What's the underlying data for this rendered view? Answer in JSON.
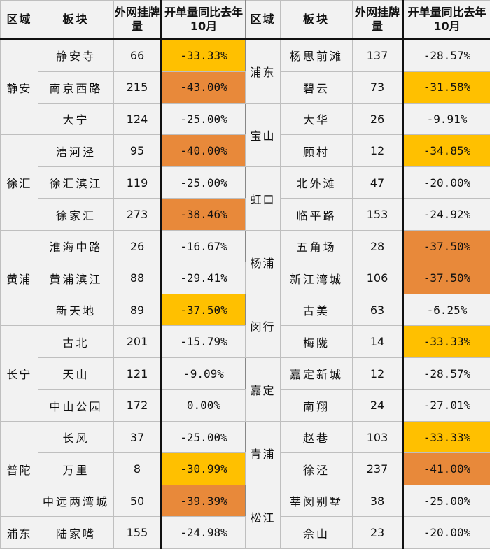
{
  "headers": {
    "region": "区域",
    "block": "板块",
    "listings": "外网挂牌量",
    "yoy": "开单量同比去年10月"
  },
  "colors": {
    "yellow": "#FFC000",
    "orange": "#E8893A"
  },
  "left": [
    {
      "region": "静安",
      "span": 3,
      "rows": [
        [
          "静安寺",
          "66",
          "-33.33%",
          "yellow"
        ],
        [
          "南京西路",
          "215",
          "-43.00%",
          "orange"
        ],
        [
          "大宁",
          "124",
          "-25.00%",
          ""
        ]
      ]
    },
    {
      "region": "徐汇",
      "span": 3,
      "rows": [
        [
          "漕河泾",
          "95",
          "-40.00%",
          "orange"
        ],
        [
          "徐汇滨江",
          "119",
          "-25.00%",
          ""
        ],
        [
          "徐家汇",
          "273",
          "-38.46%",
          "orange"
        ]
      ]
    },
    {
      "region": "黄浦",
      "span": 3,
      "rows": [
        [
          "淮海中路",
          "26",
          "-16.67%",
          ""
        ],
        [
          "黄浦滨江",
          "88",
          "-29.41%",
          ""
        ],
        [
          "新天地",
          "89",
          "-37.50%",
          "yellow"
        ]
      ]
    },
    {
      "region": "长宁",
      "span": 3,
      "rows": [
        [
          "古北",
          "201",
          "-15.79%",
          ""
        ],
        [
          "天山",
          "121",
          "-9.09%",
          ""
        ],
        [
          "中山公园",
          "172",
          "0.00%",
          ""
        ]
      ]
    },
    {
      "region": "普陀",
      "span": 3,
      "rows": [
        [
          "长风",
          "37",
          "-25.00%",
          ""
        ],
        [
          "万里",
          "8",
          "-30.99%",
          "yellow"
        ],
        [
          "中远两湾城",
          "50",
          "-39.39%",
          "orange"
        ]
      ]
    },
    {
      "region": "浦东",
      "span": 1,
      "rows": [
        [
          "陆家嘴",
          "155",
          "-24.98%",
          ""
        ]
      ]
    }
  ],
  "right": [
    {
      "region": "浦东",
      "span": 2,
      "rows": [
        [
          "杨思前滩",
          "137",
          "-28.57%",
          ""
        ],
        [
          "碧云",
          "73",
          "-31.58%",
          "yellow"
        ]
      ]
    },
    {
      "region": "宝山",
      "span": 2,
      "rows": [
        [
          "大华",
          "26",
          "-9.91%",
          ""
        ],
        [
          "顾村",
          "12",
          "-34.85%",
          "yellow"
        ]
      ]
    },
    {
      "region": "虹口",
      "span": 2,
      "rows": [
        [
          "北外滩",
          "47",
          "-20.00%",
          ""
        ],
        [
          "临平路",
          "153",
          "-24.92%",
          ""
        ]
      ]
    },
    {
      "region": "杨浦",
      "span": 2,
      "rows": [
        [
          "五角场",
          "28",
          "-37.50%",
          "orange"
        ],
        [
          "新江湾城",
          "106",
          "-37.50%",
          "orange"
        ]
      ]
    },
    {
      "region": "闵行",
      "span": 2,
      "rows": [
        [
          "古美",
          "63",
          "-6.25%",
          ""
        ],
        [
          "梅陇",
          "14",
          "-33.33%",
          "yellow"
        ]
      ]
    },
    {
      "region": "嘉定",
      "span": 2,
      "rows": [
        [
          "嘉定新城",
          "12",
          "-28.57%",
          ""
        ],
        [
          "南翔",
          "24",
          "-27.01%",
          ""
        ]
      ]
    },
    {
      "region": "青浦",
      "span": 2,
      "rows": [
        [
          "赵巷",
          "103",
          "-33.33%",
          "yellow"
        ],
        [
          "徐泾",
          "237",
          "-41.00%",
          "orange"
        ]
      ]
    },
    {
      "region": "松江",
      "span": 2,
      "rows": [
        [
          "莘闵别墅",
          "38",
          "-25.00%",
          ""
        ],
        [
          "佘山",
          "23",
          "-20.00%",
          ""
        ]
      ]
    }
  ]
}
